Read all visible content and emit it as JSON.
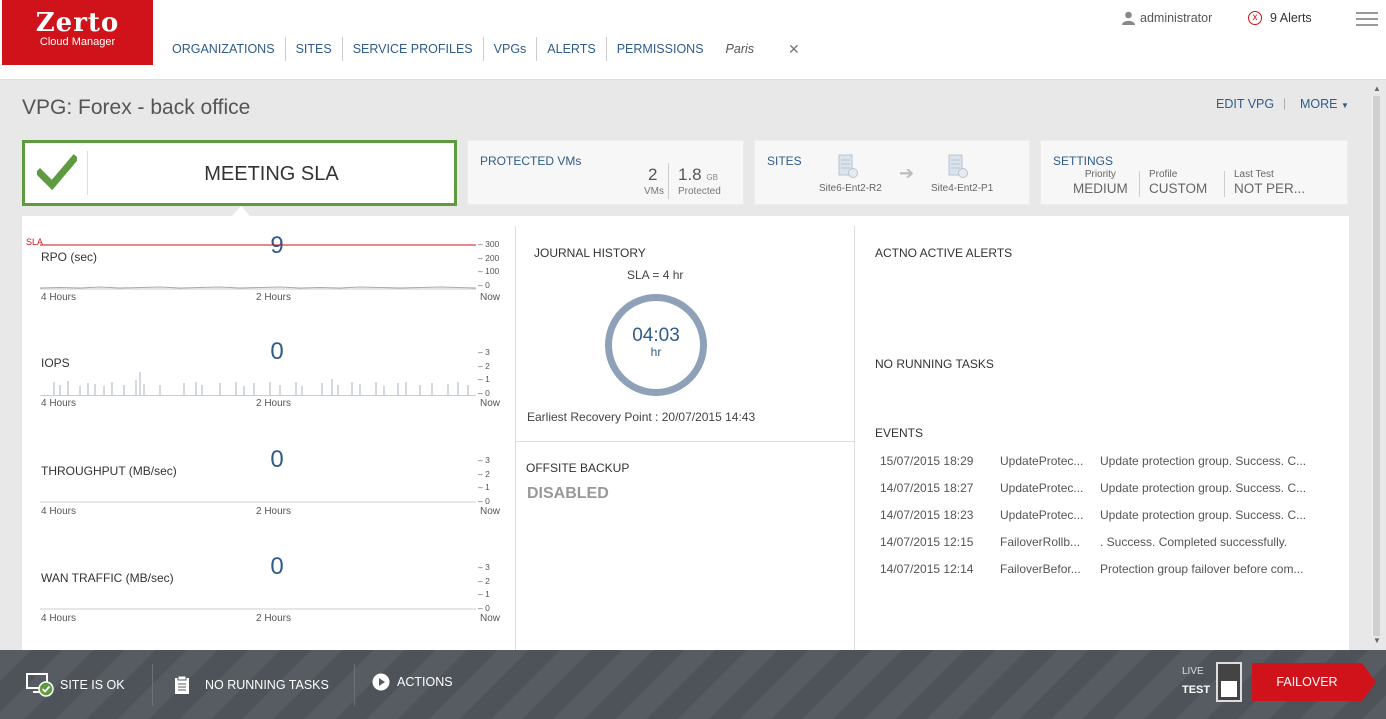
{
  "brand": {
    "name": "Zerto",
    "product": "Cloud Manager"
  },
  "nav": {
    "items": [
      "ORGANIZATIONS",
      "SITES",
      "SERVICE PROFILES",
      "VPGs",
      "ALERTS",
      "PERMISSIONS"
    ],
    "active_tab": "Paris",
    "close_glyph": "✕"
  },
  "header": {
    "user": "administrator",
    "alerts": "9 Alerts"
  },
  "vpg": {
    "title": "VPG: Forex - back office",
    "edit": "EDIT VPG",
    "separator": "|",
    "more": "MORE"
  },
  "sla_card": {
    "status": "MEETING SLA"
  },
  "protected_vms": {
    "title": "PROTECTED VMs",
    "vm_count": "2",
    "vm_label": "VMs",
    "size": "1.8",
    "size_unit": "GB",
    "size_label": "Protected"
  },
  "sites": {
    "title": "SITES",
    "source": "Site6-Ent2-R2",
    "target": "Site4-Ent2-P1"
  },
  "settings": {
    "title": "SETTINGS",
    "priority_label": "Priority",
    "priority": "MEDIUM",
    "profile_label": "Profile",
    "profile": "CUSTOM",
    "last_test_label": "Last Test",
    "last_test": "NOT PER..."
  },
  "metrics": [
    {
      "name": "RPO (sec)",
      "value": "9",
      "ticks": [
        "300",
        "200",
        "100",
        "0"
      ],
      "time_labels": [
        "4 Hours",
        "2 Hours",
        "Now"
      ],
      "sla_label": "SLA"
    },
    {
      "name": "IOPS",
      "value": "0",
      "ticks": [
        "3",
        "2",
        "1",
        "0"
      ],
      "time_labels": [
        "4 Hours",
        "2 Hours",
        "Now"
      ]
    },
    {
      "name": "THROUGHPUT (MB/sec)",
      "value": "0",
      "ticks": [
        "3",
        "2",
        "1",
        "0"
      ],
      "time_labels": [
        "4 Hours",
        "2 Hours",
        "Now"
      ]
    },
    {
      "name": "WAN TRAFFIC (MB/sec)",
      "value": "0",
      "ticks": [
        "3",
        "2",
        "1",
        "0"
      ],
      "time_labels": [
        "4 Hours",
        "2 Hours",
        "Now"
      ]
    }
  ],
  "journal": {
    "title": "JOURNAL HISTORY",
    "sla": "SLA = 4 hr",
    "time": "04:03",
    "unit": "hr",
    "earliest": "Earliest Recovery Point : 20/07/2015 14:43"
  },
  "offsite": {
    "title": "OFFSITE BACKUP",
    "status": "DISABLED"
  },
  "alerts_panel": {
    "title": "ACTNO ACTIVE ALERTS",
    "tasks": "NO RUNNING TASKS",
    "events_title": "EVENTS"
  },
  "events": [
    {
      "date": "15/07/2015 18:29",
      "type": "UpdateProtec...",
      "msg": "Update protection group. Success. C..."
    },
    {
      "date": "14/07/2015 18:27",
      "type": "UpdateProtec...",
      "msg": "Update protection group. Success. C..."
    },
    {
      "date": "14/07/2015 18:23",
      "type": "UpdateProtec...",
      "msg": "Update protection group. Success. C..."
    },
    {
      "date": "14/07/2015 12:15",
      "type": "FailoverRollb...",
      "msg": ". Success. Completed successfully."
    },
    {
      "date": "14/07/2015 12:14",
      "type": "FailoverBefor...",
      "msg": "Protection group failover before com..."
    }
  ],
  "bottom": {
    "site_status": "SITE IS OK",
    "tasks": "NO RUNNING TASKS",
    "actions": "ACTIONS",
    "live": "LIVE",
    "test": "TEST",
    "failover": "FAILOVER"
  },
  "colors": {
    "brand_red": "#d0121b",
    "accent_blue": "#2f5c8a",
    "sla_green": "#5e9a3e"
  }
}
